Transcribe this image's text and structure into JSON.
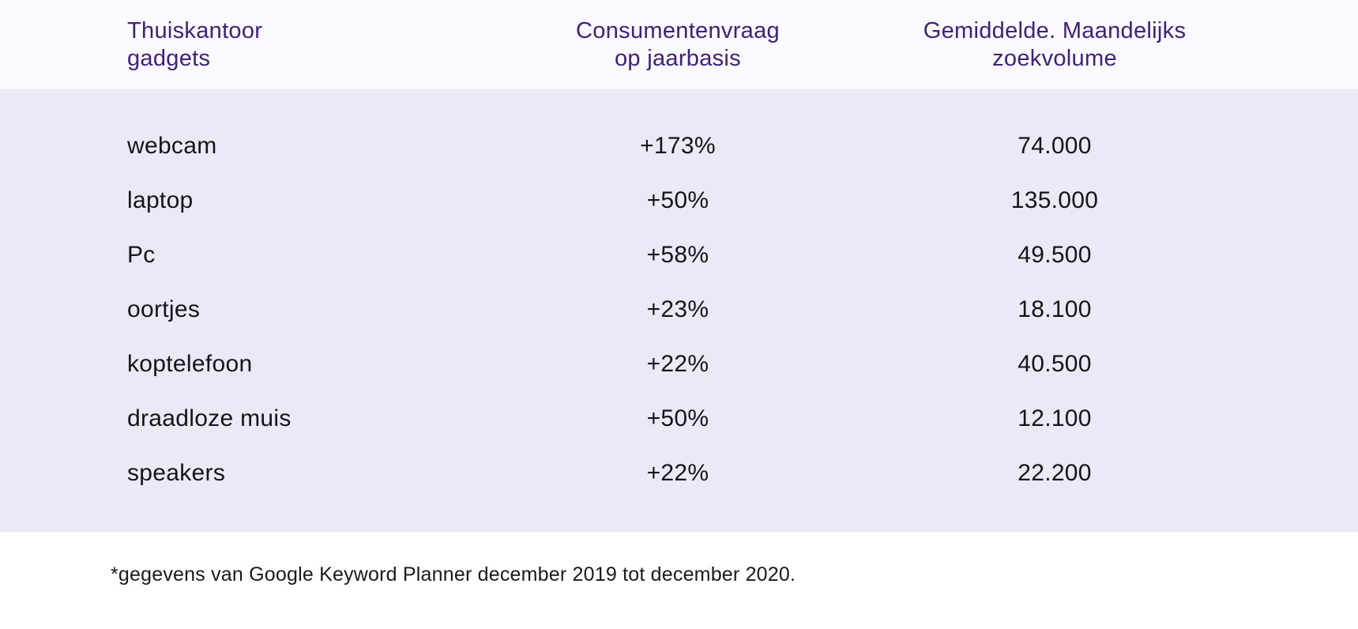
{
  "page": {
    "background": "#ffffff",
    "header_background": "#faf9fe",
    "panel_background": "#ede8f8",
    "accent_text_color": "#41207c",
    "body_text_color": "#151515"
  },
  "header": {
    "col1": "Thuiskantoor\ngadgets",
    "col2": "Consumentenvraag\nop jaarbasis",
    "col3": "Gemiddelde. Maandelijks\nzoekvolume"
  },
  "rows": [
    {
      "keyword": "webcam",
      "demand": "+173%",
      "volume": "74.000"
    },
    {
      "keyword": "laptop",
      "demand": "+50%",
      "volume": "135.000"
    },
    {
      "keyword": "Pc",
      "demand": "+58%",
      "volume": "49.500"
    },
    {
      "keyword": "oortjes",
      "demand": "+23%",
      "volume": "18.100"
    },
    {
      "keyword": "koptelefoon",
      "demand": "+22%",
      "volume": "40.500"
    },
    {
      "keyword": "draadloze muis",
      "demand": "+50%",
      "volume": "12.100"
    },
    {
      "keyword": "speakers",
      "demand": "+22%",
      "volume": "22.200"
    }
  ],
  "footnote": "*gegevens van Google Keyword Planner december 2019 tot december 2020.",
  "chart_data": {
    "type": "table",
    "title": "Thuiskantoor gadgets",
    "columns": [
      "Thuiskantoor gadgets",
      "Consumentenvraag op jaarbasis",
      "Gemiddelde. Maandelijks zoekvolume"
    ],
    "rows": [
      [
        "webcam",
        "+173%",
        "74.000"
      ],
      [
        "laptop",
        "+50%",
        "135.000"
      ],
      [
        "Pc",
        "+58%",
        "49.500"
      ],
      [
        "oortjes",
        "+23%",
        "18.100"
      ],
      [
        "koptelefoon",
        "+22%",
        "40.500"
      ],
      [
        "draadloze muis",
        "+50%",
        "12.100"
      ],
      [
        "speakers",
        "+22%",
        "22.200"
      ]
    ],
    "yearly_demand_pct": [
      173,
      50,
      58,
      23,
      22,
      50,
      22
    ],
    "avg_monthly_search_volume": [
      74000,
      135000,
      49500,
      18100,
      40500,
      12100,
      22200
    ],
    "footnote": "*gegevens van Google Keyword Planner december 2019 tot december 2020."
  }
}
